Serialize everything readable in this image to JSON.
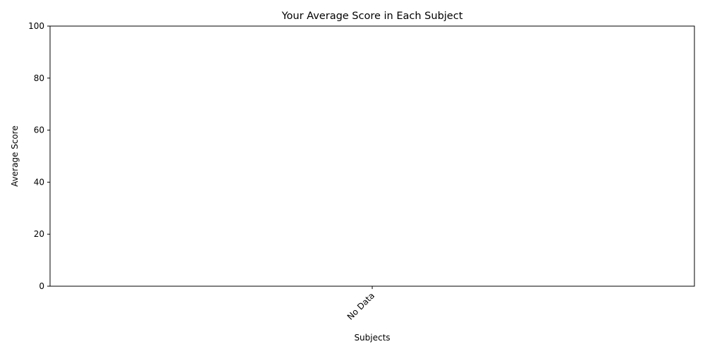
{
  "chart_data": {
    "type": "bar",
    "title": "Your Average Score in Each Subject",
    "xlabel": "Subjects",
    "ylabel": "Average Score",
    "categories": [
      "No Data"
    ],
    "values": [
      0
    ],
    "ylim": [
      0,
      100
    ],
    "yticks": [
      0,
      20,
      40,
      60,
      80,
      100
    ],
    "grid": false,
    "legend": "none",
    "xtick_rotation": 45
  }
}
